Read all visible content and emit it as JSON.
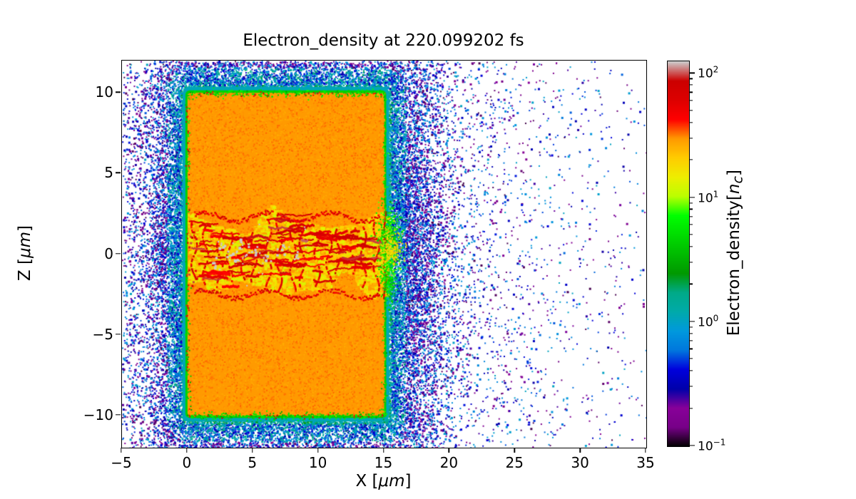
{
  "title": "Electron_density at 220.099202 fs",
  "x_axis": {
    "label_pre": "X [",
    "label_math": "μm",
    "label_post": "]",
    "tick_values": [
      -5,
      0,
      5,
      10,
      15,
      20,
      25,
      30,
      35
    ],
    "tick_labels": [
      "−5",
      "0",
      "5",
      "10",
      "15",
      "20",
      "25",
      "30",
      "35"
    ],
    "range": [
      -5,
      35
    ]
  },
  "y_axis": {
    "label_pre": "Z [",
    "label_math": "μm",
    "label_post": "]",
    "tick_values": [
      10,
      5,
      0,
      -5,
      -10
    ],
    "tick_labels": [
      "10",
      "5",
      "0",
      "−5",
      "−10"
    ],
    "range": [
      -12,
      12
    ]
  },
  "colorbar": {
    "label_pre": "Electron_density[",
    "label_math": "n",
    "label_sub": "c",
    "label_post": "]",
    "colormap": "nipy_spectral",
    "scale": "log",
    "tick_exponents": [
      2,
      1,
      0,
      -1
    ],
    "tick_exponent_labels": [
      "2",
      "1",
      "0",
      "−1"
    ],
    "log10_range": [
      -1,
      2.1
    ]
  },
  "chart_data": {
    "type": "heatmap",
    "title": "Electron_density at 220.099202 fs",
    "xlabel": "X [μm]",
    "ylabel": "Z [μm]",
    "xlim": [
      -5,
      35
    ],
    "ylim": [
      -12,
      12
    ],
    "colorbar_label": "Electron_density[n_c]",
    "color_scale": "log",
    "vmin": 0.1,
    "vmax": 126,
    "colormap": "nipy_spectral",
    "time_fs": 220.099202,
    "features": {
      "target_slab": {
        "x_um": [
          0,
          15
        ],
        "z_um": [
          -10,
          10
        ],
        "density_nc": 30,
        "color": "#ff9900"
      },
      "slab_rim": {
        "thickness_um": 0.5,
        "density_nc": [
          1,
          8
        ],
        "colors": [
          "#00aadd",
          "#00aa00"
        ]
      },
      "laser_channel": {
        "x_um": [
          0,
          15.3
        ],
        "z_um": [
          -3,
          3
        ],
        "density_nc": [
          15,
          250
        ],
        "description": "turbulent filamentary heated channel: yellow background, red filaments, periodic vertical striations, white-hot spots"
      },
      "exit_plume": {
        "x_um": [
          15,
          19
        ],
        "z_um": [
          -4,
          4
        ],
        "density_nc": [
          1,
          20
        ],
        "description": "green/cyan blowout plume at channel exit"
      },
      "plasma_halo": {
        "extent_um": 4,
        "density_nc": [
          0.1,
          2
        ],
        "description": "dense blue-cyan speckle sheath surrounding the slab"
      },
      "scattered_particles": {
        "density_nc": [
          0.1,
          0.8
        ],
        "description": "sparse purple/blue dots over the full domain out to x = 35"
      }
    }
  }
}
